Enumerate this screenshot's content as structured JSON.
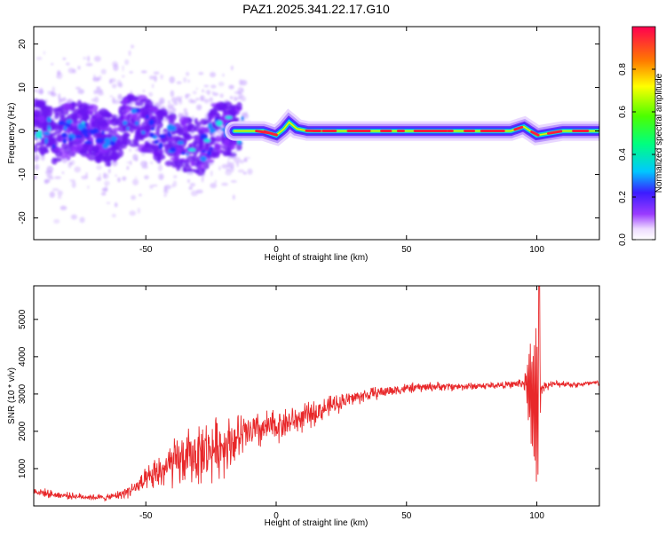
{
  "title": "PAZ1.2025.341.22.17.G10",
  "chart_data": [
    {
      "type": "heatmap",
      "xlabel": "Height of straight line (km)",
      "ylabel": "Frequency (Hz)",
      "xlim": [
        -93,
        124
      ],
      "ylim": [
        -25,
        24
      ],
      "x_ticks": [
        -50,
        0,
        50,
        100
      ],
      "y_ticks": [
        -20,
        -10,
        0,
        10,
        20
      ],
      "colorbar": {
        "label": "Normalized spectral amplitude",
        "range": [
          0,
          1
        ],
        "ticks": [
          0.0,
          0.2,
          0.4,
          0.6,
          0.8
        ]
      },
      "description_points": {
        "track_x": [
          -93,
          -85,
          -75,
          -65,
          -55,
          -45,
          -35,
          -28,
          -22,
          -16,
          -12,
          -5,
          0,
          3,
          5,
          8,
          12,
          20,
          40,
          60,
          80,
          90,
          95,
          100,
          110,
          124
        ],
        "track_y": [
          2,
          -1,
          1,
          -2,
          3,
          -1,
          -3,
          -4,
          1,
          0,
          0,
          0,
          -1,
          0.5,
          2,
          0.5,
          0,
          0,
          0,
          0,
          0,
          0,
          1,
          -1,
          0,
          0
        ]
      }
    },
    {
      "type": "line",
      "xlabel": "Height of straight line (km)",
      "ylabel": "SNR (10 * v/v)",
      "xlim": [
        -93,
        124
      ],
      "ylim": [
        0,
        5900
      ],
      "x_ticks": [
        -50,
        0,
        50,
        100
      ],
      "y_ticks": [
        1000,
        2000,
        3000,
        4000,
        5000
      ],
      "series": [
        {
          "color": "#e8282a",
          "x": [
            -93,
            -85,
            -75,
            -65,
            -60,
            -55,
            -50,
            -45,
            -40,
            -35,
            -30,
            -25,
            -20,
            -15,
            -10,
            -5,
            0,
            5,
            10,
            15,
            20,
            25,
            30,
            40,
            50,
            60,
            70,
            80,
            90,
            95,
            98,
            100,
            102,
            105,
            110,
            115,
            124
          ],
          "values": [
            400,
            300,
            250,
            220,
            300,
            450,
            650,
            900,
            1100,
            1250,
            1400,
            1500,
            1650,
            1800,
            1950,
            2050,
            2150,
            2250,
            2350,
            2500,
            2650,
            2800,
            2900,
            3050,
            3150,
            3200,
            3200,
            3220,
            3250,
            3300,
            3000,
            2600,
            3200,
            3250,
            3280,
            3250,
            3300
          ],
          "noise": [
            150,
            120,
            100,
            100,
            150,
            250,
            400,
            600,
            800,
            900,
            1000,
            1000,
            950,
            800,
            700,
            600,
            550,
            500,
            450,
            400,
            350,
            300,
            250,
            200,
            170,
            150,
            130,
            120,
            110,
            200,
            1500,
            2500,
            200,
            120,
            110,
            100,
            100
          ]
        }
      ]
    }
  ]
}
